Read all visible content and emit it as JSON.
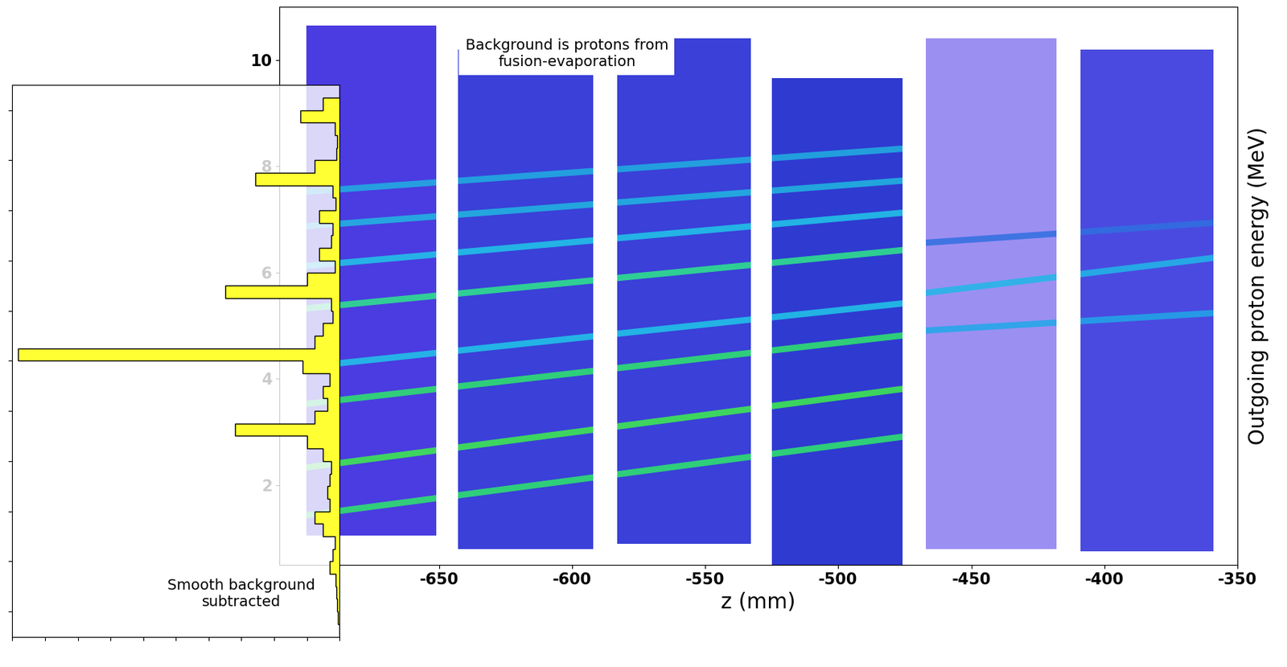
{
  "chart_data": [
    {
      "type": "density",
      "x_label": "z (mm)",
      "y_label": "Outgoing proton energy (MeV)",
      "annotation": "Background is protons from\nfusion-evaporation",
      "xlim": [
        -710,
        -350
      ],
      "xticks": [
        -650,
        -600,
        -550,
        -500,
        -450,
        -400,
        -350
      ],
      "ylim": [
        0.5,
        11
      ],
      "yticks": [
        2,
        4,
        6,
        8,
        10
      ],
      "panels": [
        {
          "z": [
            -700,
            -651
          ],
          "energy": [
            1.05,
            10.65
          ],
          "color": "#4a3ce0"
        },
        {
          "z": [
            -643,
            -592
          ],
          "energy": [
            0.8,
            10.2
          ],
          "color": "#3a40d8"
        },
        {
          "z": [
            -583,
            -533
          ],
          "energy": [
            0.9,
            10.4
          ],
          "color": "#3a40d8"
        },
        {
          "z": [
            -525,
            -476
          ],
          "energy": [
            0.45,
            9.65
          ],
          "color": "#2f3ad0"
        },
        {
          "z": [
            -467,
            -418
          ],
          "energy": [
            0.8,
            10.4
          ],
          "color": "#9c8ff2"
        },
        {
          "z": [
            -409,
            -359
          ],
          "energy": [
            0.75,
            10.2
          ],
          "color": "#4a4ae0"
        }
      ],
      "lines": [
        {
          "z": [
            -705,
            -470
          ],
          "energy": [
            1.4,
            2.95
          ],
          "color": "#2ee86a"
        },
        {
          "z": [
            -705,
            -470
          ],
          "energy": [
            2.3,
            3.85
          ],
          "color": "#3ef04a"
        },
        {
          "z": [
            -705,
            -470
          ],
          "energy": [
            3.5,
            4.85
          ],
          "color": "#2ee86a"
        },
        {
          "z": [
            -705,
            -470
          ],
          "energy": [
            4.2,
            5.45
          ],
          "color": "#20c8e8"
        },
        {
          "z": [
            -705,
            -470
          ],
          "energy": [
            5.3,
            6.45
          ],
          "color": "#2ee88a"
        },
        {
          "z": [
            -705,
            -470
          ],
          "energy": [
            6.1,
            7.15
          ],
          "color": "#20c8e8"
        },
        {
          "z": [
            -705,
            -470
          ],
          "energy": [
            6.85,
            7.75
          ],
          "color": "#20b8e0"
        },
        {
          "z": [
            -705,
            -470
          ],
          "energy": [
            7.5,
            8.35
          ],
          "color": "#20b0e0"
        },
        {
          "z": [
            -470,
            -355
          ],
          "energy": [
            4.9,
            5.25
          ],
          "color": "#20a8e8"
        },
        {
          "z": [
            -470,
            -355
          ],
          "energy": [
            5.6,
            6.3
          ],
          "color": "#20b8e8"
        },
        {
          "z": [
            -470,
            -355
          ],
          "energy": [
            6.55,
            6.95
          ],
          "color": "#3070e0"
        }
      ]
    },
    {
      "type": "histogram",
      "orientation": "horizontal",
      "annotation": "Smooth background\nsubtracted",
      "bins": [
        -0.5,
        -0.25,
        0,
        0.25,
        0.5,
        0.75,
        1,
        1.25,
        1.5,
        1.75,
        2,
        2.25,
        2.5,
        2.75,
        3,
        3.25,
        3.5,
        3.75,
        4,
        4.25,
        4.5,
        4.75,
        5,
        5.25,
        5.5,
        5.75,
        6,
        6.25,
        6.5,
        6.75,
        7,
        7.25,
        7.5,
        7.75,
        8,
        8.25,
        8.5,
        8.75,
        9,
        9.25,
        9.5,
        9.75,
        10,
        10.25,
        10.5
      ],
      "counts": [
        0,
        20,
        48,
        6,
        3,
        4,
        30,
        103,
        8,
        5,
        25,
        8,
        10,
        25,
        6,
        40,
        140,
        10,
        8,
        20,
        30,
        393,
        45,
        12,
        20,
        15,
        30,
        128,
        40,
        20,
        10,
        12,
        15,
        12,
        30,
        20,
        6,
        8,
        12,
        5,
        4,
        3,
        2,
        0
      ],
      "color": "#ffff33",
      "xlim": [
        400,
        0
      ],
      "xticks": [
        0,
        40,
        80,
        120,
        160,
        200,
        240,
        280,
        320,
        360,
        400
      ],
      "ylim": [
        10.5,
        -0.5
      ],
      "yticks": [
        0,
        1,
        2,
        3,
        4,
        5,
        6,
        7,
        8,
        9,
        10
      ],
      "tick_labels": false
    }
  ]
}
